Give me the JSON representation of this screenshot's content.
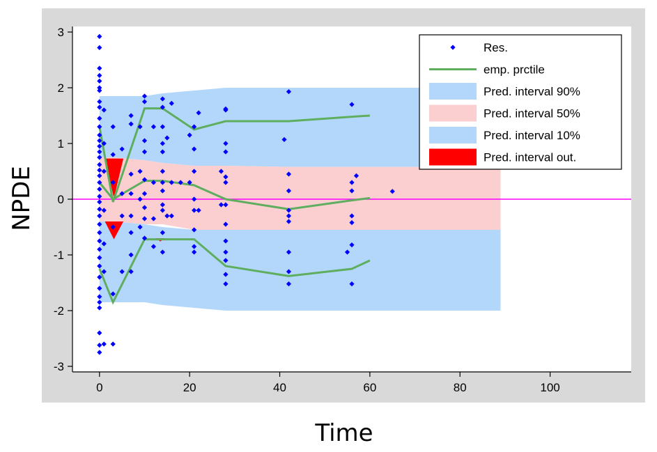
{
  "chart_data": {
    "type": "scatter",
    "xlabel": "Time",
    "ylabel": "NPDE",
    "xlim": [
      -6,
      118
    ],
    "ylim": [
      -3.1,
      3.1
    ],
    "x_ticks": [
      0,
      20,
      40,
      60,
      80,
      100
    ],
    "y_ticks": [
      -3,
      -2,
      -1,
      0,
      1,
      2,
      3
    ],
    "grid": false,
    "legend_position": "top-right",
    "legend": [
      {
        "label": "Res.",
        "kind": "marker",
        "color": "#0000ff"
      },
      {
        "label": "emp. prctile",
        "kind": "line",
        "color": "#5fae5f"
      },
      {
        "label": "Pred. interval 90%",
        "kind": "fill",
        "color": "#b3d7fa"
      },
      {
        "label": "Pred. interval 50%",
        "kind": "fill",
        "color": "#fbcfd0"
      },
      {
        "label": "Pred. interval 10%",
        "kind": "fill",
        "color": "#b3d7fa"
      },
      {
        "label": "Pred. interval out.",
        "kind": "fill",
        "color": "#ff0000"
      }
    ],
    "colors": {
      "plot_frame_bg": "#d9d9d9",
      "plot_bg": "#ffffff",
      "residual": "#0000ff",
      "percentile_line": "#5fae5f",
      "pi_outer": "#b3d7fa",
      "pi_inner": "#fbcfd0",
      "pi_out": "#ff0000",
      "zero_line": "#ff00ff"
    },
    "prediction_bands": {
      "x": [
        0,
        3,
        10,
        14,
        21,
        28,
        42,
        56,
        60,
        89
      ],
      "outer_upper": [
        1.85,
        1.85,
        1.85,
        1.9,
        1.95,
        2.0,
        2.0,
        2.0,
        2.0,
        2.0
      ],
      "outer_lower_top": [
        0.75,
        0.75,
        0.7,
        0.65,
        0.6,
        0.6,
        0.58,
        0.58,
        0.58,
        0.58
      ],
      "inner_upper": [
        0.75,
        0.75,
        0.7,
        0.65,
        0.6,
        0.6,
        0.58,
        0.58,
        0.58,
        0.58
      ],
      "inner_lower": [
        -0.4,
        -0.4,
        -0.45,
        -0.45,
        -0.55,
        -0.55,
        -0.55,
        -0.55,
        -0.55,
        -0.55
      ],
      "low_upper": [
        -0.4,
        -0.4,
        -0.45,
        -0.5,
        -0.55,
        -0.55,
        -0.55,
        -0.55,
        -0.55,
        -0.55
      ],
      "low_lower": [
        -1.85,
        -1.85,
        -1.85,
        -1.9,
        -1.95,
        -2.0,
        -2.0,
        -2.0,
        -2.0,
        -2.0
      ]
    },
    "percentile_lines": [
      {
        "x": [
          0,
          3,
          10,
          14,
          21,
          28,
          42,
          56,
          60
        ],
        "y": [
          1.3,
          -0.05,
          1.63,
          1.63,
          1.25,
          1.4,
          1.4,
          1.48,
          1.5
        ]
      },
      {
        "x": [
          0,
          3,
          10,
          14,
          21,
          28,
          42,
          56,
          60
        ],
        "y": [
          0.3,
          0.0,
          0.33,
          0.33,
          0.25,
          0.0,
          -0.18,
          -0.02,
          0.02
        ]
      },
      {
        "x": [
          0,
          3,
          10,
          14,
          21,
          28,
          42,
          56,
          60
        ],
        "y": [
          -1.25,
          -1.85,
          -0.72,
          -0.72,
          -0.72,
          -1.2,
          -1.38,
          -1.25,
          -1.1
        ]
      }
    ],
    "out_regions": [
      {
        "x": [
          1.2,
          5.3,
          3.2
        ],
        "y": [
          0.73,
          0.73,
          0.02
        ]
      },
      {
        "x": [
          1.2,
          5.3,
          3.2
        ],
        "y": [
          -0.4,
          -0.4,
          -0.72
        ]
      },
      {
        "x": [
          12.5,
          14.5,
          13.5
        ],
        "y": [
          -0.7,
          -0.7,
          -0.76
        ]
      }
    ],
    "residuals": [
      {
        "x": 0,
        "y": 2.92
      },
      {
        "x": 0,
        "y": 2.72
      },
      {
        "x": 0,
        "y": 2.35
      },
      {
        "x": 0,
        "y": 2.22
      },
      {
        "x": 0,
        "y": 2.12
      },
      {
        "x": 0,
        "y": 2.0
      },
      {
        "x": 0,
        "y": 1.95
      },
      {
        "x": 0,
        "y": 1.75
      },
      {
        "x": 0,
        "y": 1.65
      },
      {
        "x": 0,
        "y": 1.45
      },
      {
        "x": 0,
        "y": 1.3
      },
      {
        "x": 0,
        "y": 1.15
      },
      {
        "x": 0,
        "y": 1.05
      },
      {
        "x": 0,
        "y": 0.95
      },
      {
        "x": 0,
        "y": 0.85
      },
      {
        "x": 0,
        "y": 0.75
      },
      {
        "x": 0,
        "y": 0.62
      },
      {
        "x": 0,
        "y": 0.52
      },
      {
        "x": 0,
        "y": 0.42
      },
      {
        "x": 0,
        "y": 0.3
      },
      {
        "x": 0,
        "y": 0.18
      },
      {
        "x": 0,
        "y": 0.05
      },
      {
        "x": 0,
        "y": -0.05
      },
      {
        "x": 0,
        "y": -0.18
      },
      {
        "x": 0,
        "y": -0.3
      },
      {
        "x": 0,
        "y": -0.45
      },
      {
        "x": 0,
        "y": -0.6
      },
      {
        "x": 0,
        "y": -0.75
      },
      {
        "x": 0,
        "y": -0.9
      },
      {
        "x": 0,
        "y": -1.05
      },
      {
        "x": 0,
        "y": -1.2
      },
      {
        "x": 0,
        "y": -1.4
      },
      {
        "x": 0,
        "y": -1.6
      },
      {
        "x": 0,
        "y": -1.75
      },
      {
        "x": 0,
        "y": -1.85
      },
      {
        "x": 0,
        "y": -1.95
      },
      {
        "x": 0,
        "y": -2.4
      },
      {
        "x": 0,
        "y": -2.62
      },
      {
        "x": 0,
        "y": -2.75
      },
      {
        "x": 1,
        "y": 1.0
      },
      {
        "x": 1,
        "y": 0.5
      },
      {
        "x": 1,
        "y": -0.2
      },
      {
        "x": 1,
        "y": -0.8
      },
      {
        "x": 1,
        "y": -1.3
      },
      {
        "x": 1,
        "y": 1.6
      },
      {
        "x": 1,
        "y": -2.6
      },
      {
        "x": 3,
        "y": 1.3
      },
      {
        "x": 3,
        "y": 0.3
      },
      {
        "x": 3,
        "y": -0.5
      },
      {
        "x": 3,
        "y": -1.7
      },
      {
        "x": 3,
        "y": -2.6
      },
      {
        "x": 3,
        "y": 0.8
      },
      {
        "x": 5,
        "y": 0.1
      },
      {
        "x": 5,
        "y": -0.3
      },
      {
        "x": 5,
        "y": -1.3
      },
      {
        "x": 5,
        "y": 0.9
      },
      {
        "x": 7,
        "y": 1.5
      },
      {
        "x": 7,
        "y": 1.35
      },
      {
        "x": 7,
        "y": 0.45
      },
      {
        "x": 7,
        "y": 0.1
      },
      {
        "x": 7,
        "y": -0.3
      },
      {
        "x": 7,
        "y": -0.6
      },
      {
        "x": 7,
        "y": -1.0
      },
      {
        "x": 7,
        "y": -1.3
      },
      {
        "x": 9,
        "y": 1.3
      },
      {
        "x": 9,
        "y": 0.5
      },
      {
        "x": 9,
        "y": 0.0
      },
      {
        "x": 9,
        "y": -0.5
      },
      {
        "x": 10,
        "y": 1.85
      },
      {
        "x": 10,
        "y": 1.75
      },
      {
        "x": 10,
        "y": 1.05
      },
      {
        "x": 10,
        "y": 0.85
      },
      {
        "x": 10,
        "y": 0.35
      },
      {
        "x": 10,
        "y": 0.1
      },
      {
        "x": 10,
        "y": -0.15
      },
      {
        "x": 10,
        "y": -0.35
      },
      {
        "x": 10,
        "y": -0.7
      },
      {
        "x": 12,
        "y": 1.3
      },
      {
        "x": 12,
        "y": 0.3
      },
      {
        "x": 12,
        "y": -0.35
      },
      {
        "x": 12,
        "y": -0.85
      },
      {
        "x": 14,
        "y": 1.8
      },
      {
        "x": 14,
        "y": 1.65
      },
      {
        "x": 14,
        "y": 1.3
      },
      {
        "x": 14,
        "y": 1.0
      },
      {
        "x": 14,
        "y": 0.85
      },
      {
        "x": 14,
        "y": 0.5
      },
      {
        "x": 14,
        "y": 0.3
      },
      {
        "x": 14,
        "y": 0.15
      },
      {
        "x": 14,
        "y": -0.1
      },
      {
        "x": 14,
        "y": -0.2
      },
      {
        "x": 14,
        "y": -0.6
      },
      {
        "x": 14,
        "y": -0.95
      },
      {
        "x": 15,
        "y": 1.1
      },
      {
        "x": 15,
        "y": -0.3
      },
      {
        "x": 16,
        "y": 1.72
      },
      {
        "x": 16,
        "y": 0.3
      },
      {
        "x": 16,
        "y": -0.3
      },
      {
        "x": 18,
        "y": 0.3
      },
      {
        "x": 20,
        "y": 1.15
      },
      {
        "x": 20,
        "y": 0.3
      },
      {
        "x": 21,
        "y": 1.3
      },
      {
        "x": 21,
        "y": 0.9
      },
      {
        "x": 21,
        "y": 0.5
      },
      {
        "x": 21,
        "y": 0.0
      },
      {
        "x": 21,
        "y": -0.2
      },
      {
        "x": 21,
        "y": -0.55
      },
      {
        "x": 21,
        "y": -0.85
      },
      {
        "x": 21,
        "y": -0.95
      },
      {
        "x": 22,
        "y": 1.55
      },
      {
        "x": 22,
        "y": -0.2
      },
      {
        "x": 27,
        "y": 0.5
      },
      {
        "x": 27,
        "y": -0.1
      },
      {
        "x": 28,
        "y": 1.62
      },
      {
        "x": 28,
        "y": 1.6
      },
      {
        "x": 28,
        "y": 1.0
      },
      {
        "x": 28,
        "y": 0.85
      },
      {
        "x": 28,
        "y": 0.4
      },
      {
        "x": 28,
        "y": 0.3
      },
      {
        "x": 28,
        "y": -0.1
      },
      {
        "x": 28,
        "y": -0.45
      },
      {
        "x": 28,
        "y": -0.75
      },
      {
        "x": 28,
        "y": -0.95
      },
      {
        "x": 28,
        "y": -1.1
      },
      {
        "x": 28,
        "y": -1.35
      },
      {
        "x": 28,
        "y": -1.52
      },
      {
        "x": 41,
        "y": 1.07
      },
      {
        "x": 42,
        "y": 1.93
      },
      {
        "x": 42,
        "y": 0.45
      },
      {
        "x": 42,
        "y": 0.15
      },
      {
        "x": 42,
        "y": -0.2
      },
      {
        "x": 42,
        "y": -0.3
      },
      {
        "x": 42,
        "y": -0.4
      },
      {
        "x": 42,
        "y": -0.95
      },
      {
        "x": 42,
        "y": -1.3
      },
      {
        "x": 42,
        "y": -1.52
      },
      {
        "x": 55,
        "y": -0.95
      },
      {
        "x": 56,
        "y": 1.7
      },
      {
        "x": 56,
        "y": 0.3
      },
      {
        "x": 56,
        "y": 0.15
      },
      {
        "x": 56,
        "y": -0.3
      },
      {
        "x": 56,
        "y": -0.42
      },
      {
        "x": 56,
        "y": -0.82
      },
      {
        "x": 56,
        "y": -1.52
      },
      {
        "x": 57,
        "y": 0.42
      },
      {
        "x": 65,
        "y": 0.14
      }
    ]
  }
}
